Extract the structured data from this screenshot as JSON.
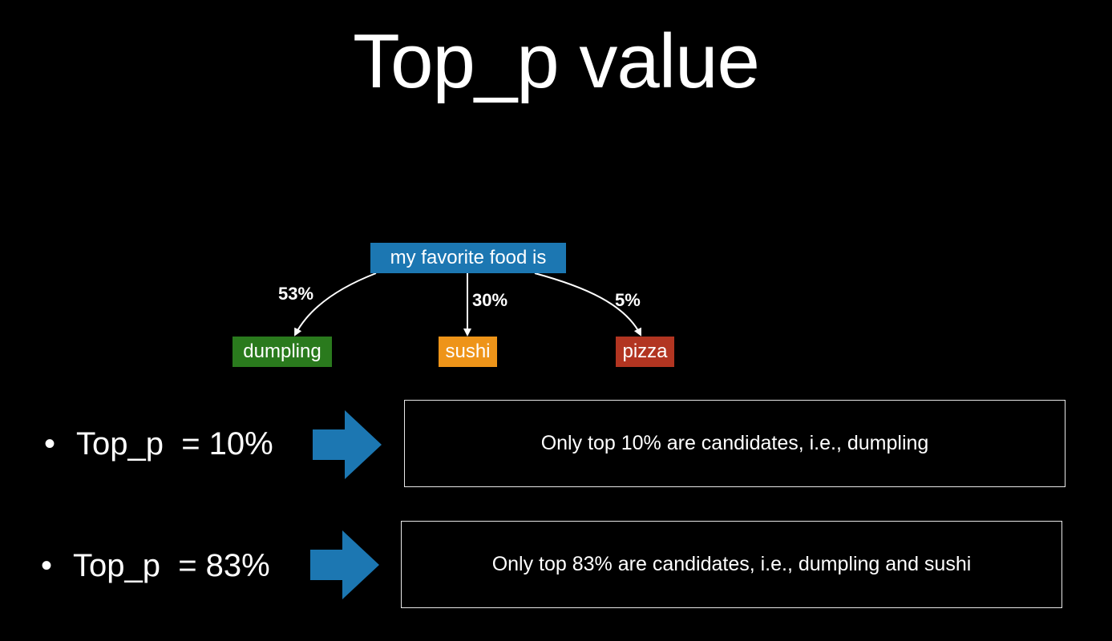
{
  "title": "Top_p value",
  "tree": {
    "root": "my favorite food is",
    "children": [
      {
        "label": "dumpling",
        "probability": "53%",
        "color": "#2a7a1d"
      },
      {
        "label": "sushi",
        "probability": "30%",
        "color": "#ee9419"
      },
      {
        "label": "pizza",
        "probability": "5%",
        "color": "#b23521"
      }
    ],
    "root_color": "#1c77b2"
  },
  "rows": [
    {
      "bullet": "•",
      "label": "Top_p  = 10%",
      "result": "Only top 10% are candidates, i.e.,  dumpling"
    },
    {
      "bullet": "•",
      "label": "Top_p  = 83%",
      "result": "Only top 83% are candidates, i.e.,  dumpling and sushi"
    }
  ],
  "arrow_color": "#1c77b2"
}
